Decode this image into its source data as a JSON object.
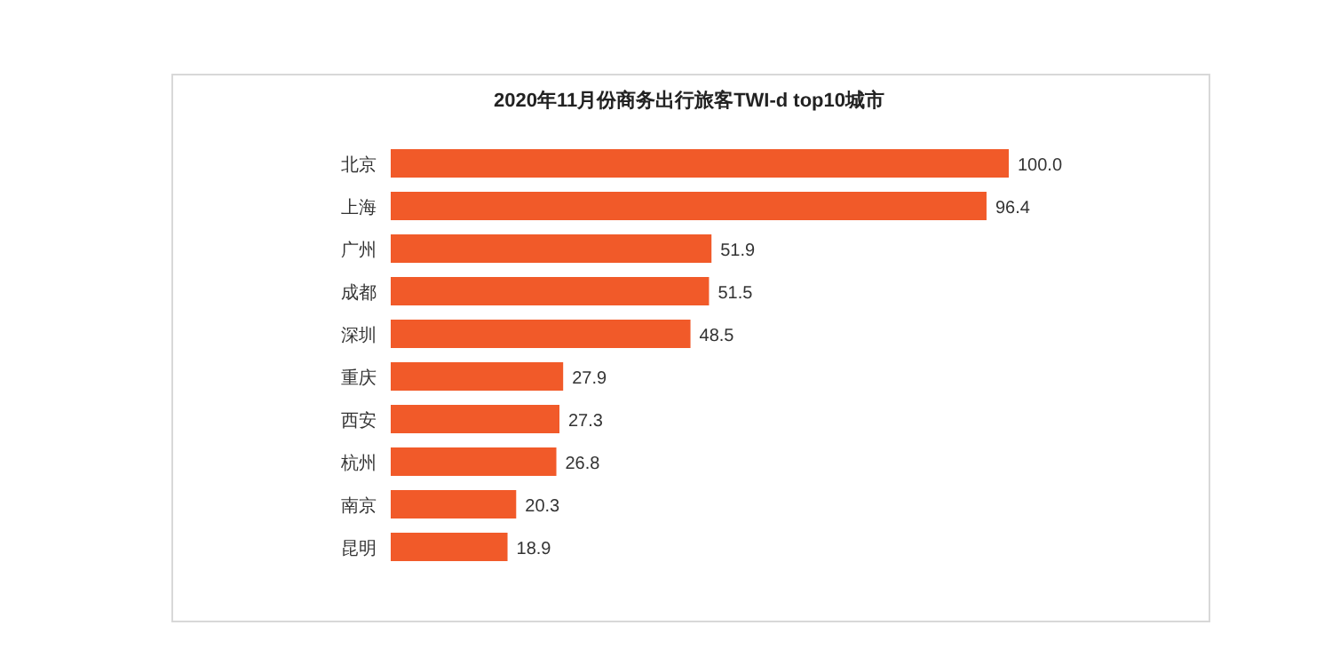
{
  "chart_data": {
    "type": "bar",
    "orientation": "horizontal",
    "title": "2020年11月份商务出行旅客TWI-d top10城市",
    "categories": [
      "北京",
      "上海",
      "广州",
      "成都",
      "深圳",
      "重庆",
      "西安",
      "杭州",
      "南京",
      "昆明"
    ],
    "values": [
      100.0,
      96.4,
      51.9,
      51.5,
      48.5,
      27.9,
      27.3,
      26.8,
      20.3,
      18.9
    ],
    "value_labels": [
      "100.0",
      "96.4",
      "51.9",
      "51.5",
      "48.5",
      "27.9",
      "27.3",
      "26.8",
      "20.3",
      "18.9"
    ],
    "color": "#f15a29"
  }
}
